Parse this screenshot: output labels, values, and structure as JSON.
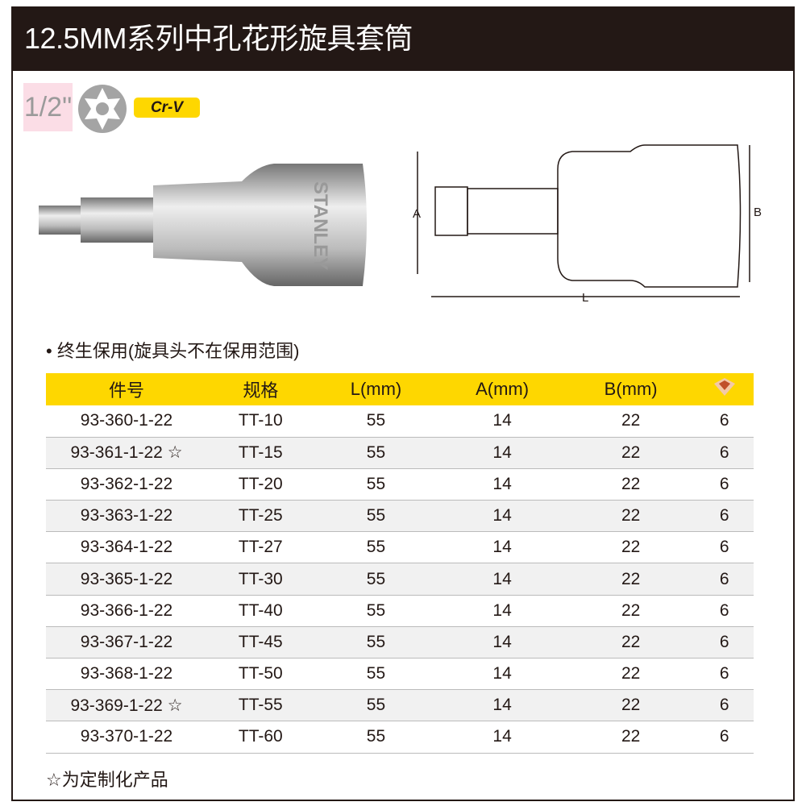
{
  "title": "12.5MM系列中孔花形旋具套筒",
  "badges": {
    "drive_size": "1/2\"",
    "material": "Cr-V",
    "bit_type_icon": "torx-icon"
  },
  "photo": {
    "brand": "STANLEY"
  },
  "drawing": {
    "label_a": "A",
    "label_b": "B",
    "label_l": "L"
  },
  "note": "• 终生保用(旋具头不在保用范围)",
  "table": {
    "headers": [
      "件号",
      "规格",
      "L(mm)",
      "A(mm)",
      "B(mm)"
    ],
    "package_icon": "box-icon",
    "rows": [
      [
        "93-360-1-22",
        "TT-10",
        "55",
        "14",
        "22",
        "6"
      ],
      [
        "93-361-1-22 ☆",
        "TT-15",
        "55",
        "14",
        "22",
        "6"
      ],
      [
        "93-362-1-22",
        "TT-20",
        "55",
        "14",
        "22",
        "6"
      ],
      [
        "93-363-1-22",
        "TT-25",
        "55",
        "14",
        "22",
        "6"
      ],
      [
        "93-364-1-22",
        "TT-27",
        "55",
        "14",
        "22",
        "6"
      ],
      [
        "93-365-1-22",
        "TT-30",
        "55",
        "14",
        "22",
        "6"
      ],
      [
        "93-366-1-22",
        "TT-40",
        "55",
        "14",
        "22",
        "6"
      ],
      [
        "93-367-1-22",
        "TT-45",
        "55",
        "14",
        "22",
        "6"
      ],
      [
        "93-368-1-22",
        "TT-50",
        "55",
        "14",
        "22",
        "6"
      ],
      [
        "93-369-1-22 ☆",
        "TT-55",
        "55",
        "14",
        "22",
        "6"
      ],
      [
        "93-370-1-22",
        "TT-60",
        "55",
        "14",
        "22",
        "6"
      ]
    ]
  },
  "footnote": "☆为定制化产品"
}
